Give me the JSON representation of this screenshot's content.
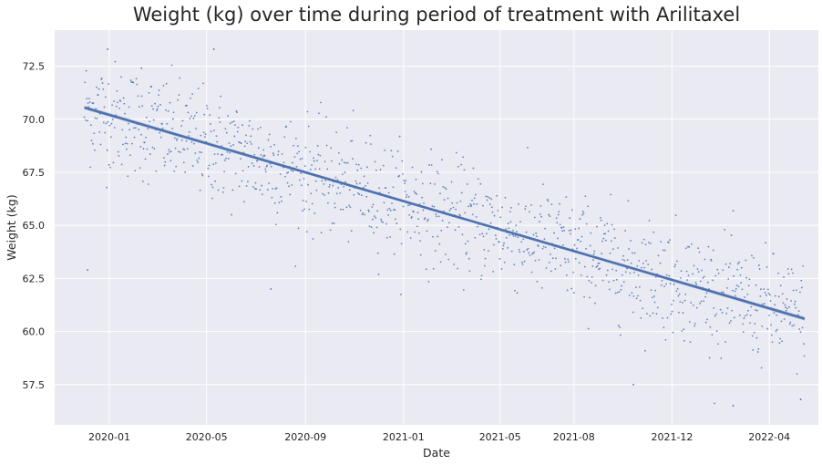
{
  "chart_data": {
    "type": "scatter",
    "title": "Weight (kg) over time during period of treatment with Arilitaxel",
    "xlabel": "Date",
    "ylabel": "Weight (kg)",
    "x_ticks": [
      "2020-01",
      "2020-05",
      "2020-09",
      "2021-01",
      "2021-05",
      "2021-08",
      "2021-12",
      "2022-04"
    ],
    "x_tick_dates": [
      "2020-01-01",
      "2020-05-01",
      "2020-09-01",
      "2021-01-01",
      "2021-05-01",
      "2021-08-01",
      "2021-12-01",
      "2022-04-01"
    ],
    "y_ticks": [
      57.5,
      60.0,
      62.5,
      65.0,
      67.5,
      70.0,
      72.5
    ],
    "xlim": [
      "2019-10-25",
      "2022-06-01"
    ],
    "ylim": [
      55.6,
      74.2
    ],
    "grid": true,
    "background": "#EAEAF2",
    "series": [
      {
        "kind": "points",
        "color": "#4C72B0",
        "x_range": [
          "2019-12-01",
          "2022-05-15"
        ],
        "trend_start": 70.5,
        "trend_end": 60.6,
        "noise_sd": 1.3,
        "outliers": [
          {
            "x": "2019-12-05",
            "y": 62.9
          },
          {
            "x": "2019-12-30",
            "y": 73.3
          },
          {
            "x": "2020-02-10",
            "y": 72.4
          },
          {
            "x": "2020-05-10",
            "y": 73.3
          },
          {
            "x": "2020-07-20",
            "y": 62.0
          },
          {
            "x": "2021-10-14",
            "y": 57.5
          },
          {
            "x": "2022-02-15",
            "y": 56.5
          },
          {
            "x": "2022-05-10",
            "y": 56.8
          }
        ]
      },
      {
        "kind": "regression",
        "color": "#4C72B0",
        "start": {
          "x": "2019-12-01",
          "y": 70.55
        },
        "end": {
          "x": "2022-05-15",
          "y": 60.6
        }
      }
    ]
  }
}
